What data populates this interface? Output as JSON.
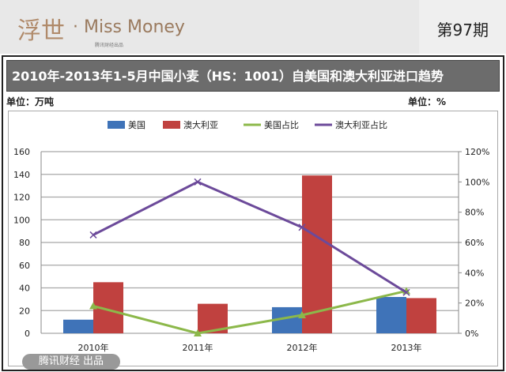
{
  "header": {
    "logo_text": "浮世",
    "brand": "· Miss Money",
    "brand_sub": "腾讯财经出品",
    "issue": "第97期"
  },
  "chart_data": {
    "type": "bar",
    "title": "2010年-2013年1-5月中国小麦（HS：1001）自美国和澳大利亚进口趋势",
    "left_unit": "单位：万吨",
    "right_unit": "单位：%",
    "categories": [
      "2010年",
      "2011年",
      "2012年",
      "2013年"
    ],
    "ylim": [
      0,
      160
    ],
    "y_ticks": [
      "0",
      "20",
      "40",
      "60",
      "80",
      "100",
      "120",
      "140",
      "160"
    ],
    "y2lim": [
      0,
      120
    ],
    "y2_ticks": [
      "0%",
      "20%",
      "40%",
      "60%",
      "80%",
      "100%",
      "120%"
    ],
    "grid": true,
    "legend": "top",
    "series": [
      {
        "name": "美国",
        "type": "bar",
        "axis": "left",
        "color": "#3f73b8",
        "values": [
          12,
          0,
          23,
          32
        ]
      },
      {
        "name": "澳大利亚",
        "type": "bar",
        "axis": "left",
        "color": "#c0413f",
        "values": [
          45,
          26,
          139,
          31
        ]
      },
      {
        "name": "美国占比",
        "type": "line",
        "axis": "right",
        "color": "#8cb84a",
        "values": [
          18,
          0,
          12,
          28
        ]
      },
      {
        "name": "澳大利亚占比",
        "type": "line",
        "axis": "right",
        "color": "#6c4a9a",
        "values": [
          65,
          100,
          70,
          27
        ]
      }
    ]
  },
  "watermark": "腾讯财经 出品"
}
